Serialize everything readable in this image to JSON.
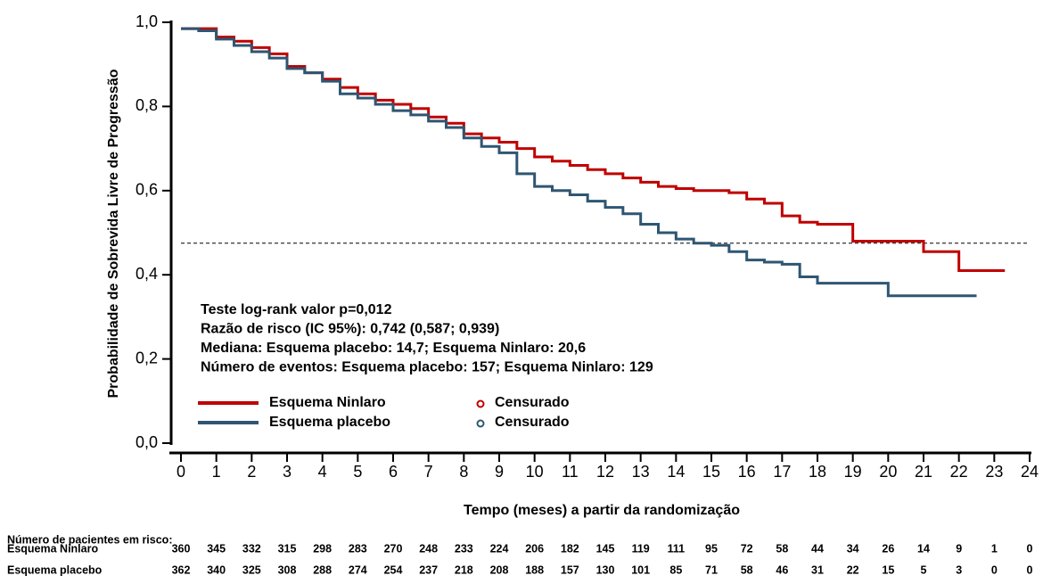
{
  "chart_data": {
    "type": "line",
    "step": true,
    "y_label": "Probabilidade de Sobrevida Livre de Progressão",
    "x_label": "Tempo (meses) a partir da randomização",
    "x": [
      0,
      0.5,
      1,
      1.5,
      2,
      2.5,
      3,
      3.5,
      4,
      4.5,
      5,
      5.5,
      6,
      6.5,
      7,
      7.5,
      8,
      8.5,
      9,
      9.5,
      10,
      10.5,
      11,
      11.5,
      12,
      12.5,
      13,
      13.5,
      14,
      14.5,
      15,
      15.5,
      16,
      16.5,
      17,
      17.5,
      18,
      18.5,
      19,
      19.5,
      20,
      20.5,
      21,
      21.5,
      22,
      22.5,
      23,
      23.3
    ],
    "series": [
      {
        "name": "Esquema Ninlaro",
        "color": "#c00000",
        "censored_label": "Censurado",
        "values": [
          0.985,
          0.985,
          0.965,
          0.955,
          0.94,
          0.925,
          0.895,
          0.88,
          0.865,
          0.845,
          0.83,
          0.815,
          0.805,
          0.795,
          0.775,
          0.76,
          0.735,
          0.725,
          0.715,
          0.7,
          0.68,
          0.67,
          0.66,
          0.65,
          0.64,
          0.63,
          0.62,
          0.61,
          0.605,
          0.6,
          0.6,
          0.595,
          0.58,
          0.57,
          0.54,
          0.525,
          0.52,
          0.52,
          0.48,
          0.48,
          0.48,
          0.48,
          0.455,
          0.455,
          0.41,
          0.41,
          0.41,
          0.41
        ]
      },
      {
        "name": "Esquema placebo",
        "color": "#2e5672",
        "censored_label": "Censurado",
        "values": [
          0.985,
          0.98,
          0.96,
          0.945,
          0.93,
          0.915,
          0.89,
          0.88,
          0.86,
          0.83,
          0.82,
          0.805,
          0.79,
          0.78,
          0.765,
          0.75,
          0.725,
          0.705,
          0.69,
          0.64,
          0.61,
          0.6,
          0.59,
          0.575,
          0.56,
          0.545,
          0.52,
          0.5,
          0.485,
          0.475,
          0.47,
          0.455,
          0.435,
          0.43,
          0.425,
          0.395,
          0.38,
          0.38,
          0.38,
          0.38,
          0.35,
          0.35,
          0.35,
          0.35,
          0.35,
          0.35,
          null,
          null
        ]
      }
    ],
    "reference_line": 0.475,
    "xlim": [
      0,
      24
    ],
    "xticks": [
      0,
      1,
      2,
      3,
      4,
      5,
      6,
      7,
      8,
      9,
      10,
      11,
      12,
      13,
      14,
      15,
      16,
      17,
      18,
      19,
      20,
      21,
      22,
      23,
      24
    ],
    "ylim": [
      0,
      1
    ],
    "yticks": [
      {
        "value": 0,
        "label": "0,0"
      },
      {
        "value": 0.2,
        "label": "0,2"
      },
      {
        "value": 0.4,
        "label": "0,4"
      },
      {
        "value": 0.6,
        "label": "0,6"
      },
      {
        "value": 0.8,
        "label": "0,8"
      },
      {
        "value": 1,
        "label": "1,0"
      }
    ],
    "annotations": [
      "Teste log-rank valor p=0,012",
      "Razão de risco (IC 95%): 0,742 (0,587; 0,939)",
      "Mediana: Esquema placebo: 14,7; Esquema Ninlaro: 20,6",
      "Número de eventos: Esquema placebo: 157; Esquema Ninlaro: 129"
    ],
    "at_risk": {
      "title": "Número de pacientes em risco:",
      "rows": [
        {
          "name": "Esquema Ninlaro",
          "values": [
            360,
            345,
            332,
            315,
            298,
            283,
            270,
            248,
            233,
            224,
            206,
            182,
            145,
            119,
            111,
            95,
            72,
            58,
            44,
            34,
            26,
            14,
            9,
            1,
            0
          ]
        },
        {
          "name": "Esquema placebo",
          "values": [
            362,
            340,
            325,
            308,
            288,
            274,
            254,
            237,
            218,
            208,
            188,
            157,
            130,
            101,
            85,
            71,
            58,
            46,
            31,
            22,
            15,
            5,
            3,
            0,
            0
          ]
        }
      ]
    }
  }
}
